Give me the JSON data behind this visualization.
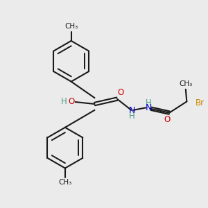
{
  "bg_color": "#ebebeb",
  "bond_color": "#1a1a1a",
  "oxygen_color": "#cc0000",
  "nitrogen_color": "#0000cc",
  "bromine_color": "#cc8800",
  "nh_h_color": "#4a9a8a",
  "ho_h_color": "#4a9a8a",
  "line_width": 1.5,
  "figsize": [
    3.0,
    3.0
  ],
  "dpi": 100,
  "xlim": [
    0,
    10
  ],
  "ylim": [
    0,
    10
  ]
}
